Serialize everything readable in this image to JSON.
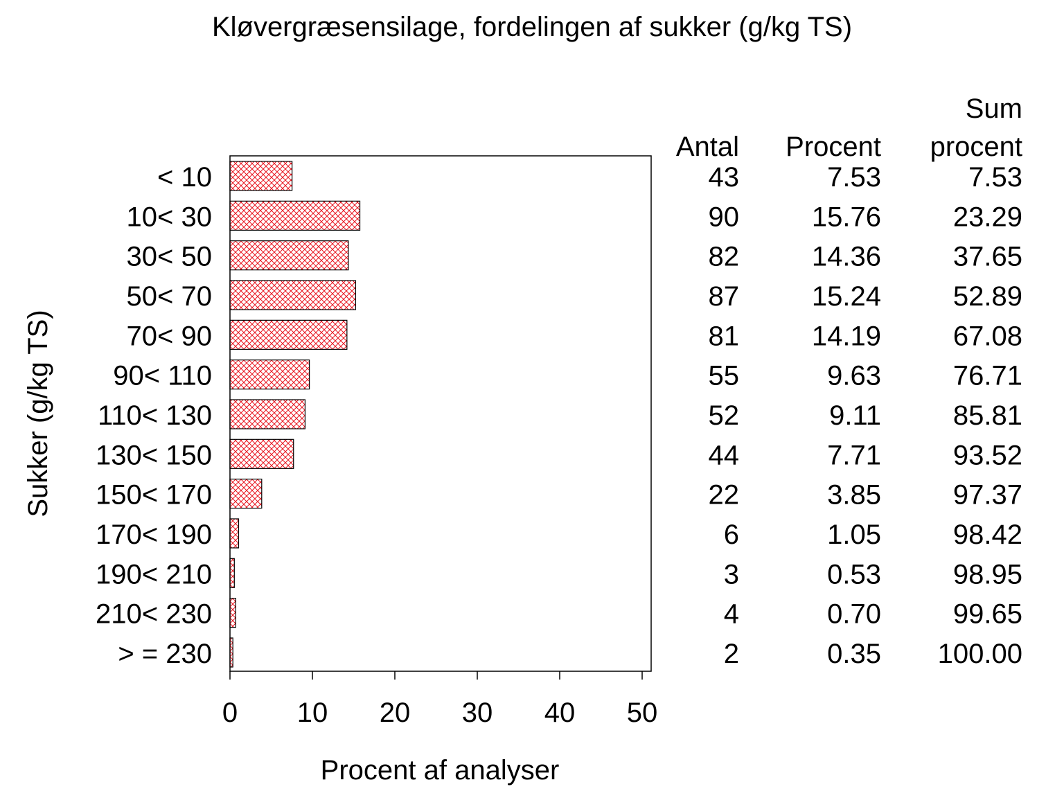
{
  "chart_data": {
    "type": "bar",
    "orientation": "horizontal",
    "title": "Kløvergræsensilage, fordelingen af sukker (g/kg TS)",
    "xlabel": "Procent af analyser",
    "ylabel": "Sukker (g/kg TS)",
    "xlim": [
      0,
      50
    ],
    "x_ticks": [
      "0",
      "10",
      "20",
      "30",
      "40",
      "50"
    ],
    "grid": false,
    "bar_fill": "red crosshatch",
    "bar_color": "#e8141e",
    "categories": [
      "< 10",
      "10< 30",
      "30< 50",
      "50< 70",
      "70< 90",
      "90< 110",
      "110< 130",
      "130< 150",
      "150< 170",
      "170< 190",
      "190< 210",
      "210< 230",
      "> = 230"
    ],
    "values": [
      7.53,
      15.76,
      14.36,
      15.24,
      14.19,
      9.63,
      9.11,
      7.71,
      3.85,
      1.05,
      0.53,
      0.7,
      0.35
    ],
    "table": {
      "headers": {
        "antal": [
          "Antal"
        ],
        "procent": [
          "Procent"
        ],
        "sum": [
          "Sum",
          "procent"
        ]
      },
      "rows": [
        {
          "antal": "43",
          "procent": "7.53",
          "sum": "7.53"
        },
        {
          "antal": "90",
          "procent": "15.76",
          "sum": "23.29"
        },
        {
          "antal": "82",
          "procent": "14.36",
          "sum": "37.65"
        },
        {
          "antal": "87",
          "procent": "15.24",
          "sum": "52.89"
        },
        {
          "antal": "81",
          "procent": "14.19",
          "sum": "67.08"
        },
        {
          "antal": "55",
          "procent": "9.63",
          "sum": "76.71"
        },
        {
          "antal": "52",
          "procent": "9.11",
          "sum": "85.81"
        },
        {
          "antal": "44",
          "procent": "7.71",
          "sum": "93.52"
        },
        {
          "antal": "22",
          "procent": "3.85",
          "sum": "97.37"
        },
        {
          "antal": "6",
          "procent": "1.05",
          "sum": "98.42"
        },
        {
          "antal": "3",
          "procent": "0.53",
          "sum": "98.95"
        },
        {
          "antal": "4",
          "procent": "0.70",
          "sum": "99.65"
        },
        {
          "antal": "2",
          "procent": "0.35",
          "sum": "100.00"
        }
      ]
    }
  }
}
